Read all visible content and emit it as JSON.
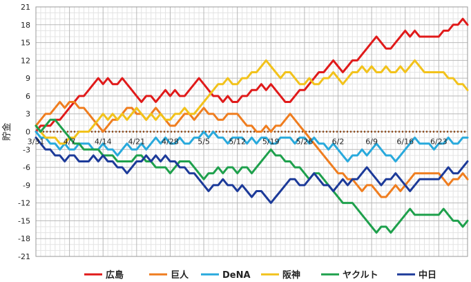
{
  "chart_data": {
    "type": "line",
    "title": "",
    "ylabel": "貯金",
    "xlabel": "",
    "ylim": [
      -21,
      21
    ],
    "yticks": [
      -21,
      -18,
      -15,
      -12,
      -9,
      -6,
      -3,
      0,
      3,
      6,
      9,
      12,
      15,
      18,
      21
    ],
    "x_labels": [
      "3/31",
      "4/7",
      "4/14",
      "4/21",
      "4/28",
      "5/5",
      "5/12",
      "5/19",
      "5/26",
      "6/2",
      "6/9",
      "6/16",
      "6/23"
    ],
    "x_label_index": [
      0,
      7,
      14,
      21,
      28,
      35,
      42,
      49,
      56,
      63,
      70,
      77,
      84
    ],
    "n_points": 91,
    "zero_line": {
      "style": "dotted",
      "color": "#8B4513"
    },
    "series": [
      {
        "name": "広島",
        "color": "#e01a1a",
        "values": [
          0,
          1,
          1,
          1,
          2,
          2,
          3,
          4,
          5,
          6,
          6,
          7,
          8,
          9,
          8,
          9,
          8,
          8,
          9,
          8,
          7,
          6,
          5,
          6,
          6,
          5,
          6,
          7,
          6,
          7,
          6,
          6,
          7,
          8,
          9,
          8,
          7,
          6,
          6,
          5,
          6,
          5,
          5,
          6,
          6,
          7,
          7,
          8,
          7,
          8,
          7,
          6,
          5,
          5,
          6,
          7,
          7,
          8,
          9,
          10,
          10,
          11,
          12,
          11,
          10,
          11,
          12,
          12,
          13,
          14,
          15,
          16,
          15,
          14,
          14,
          15,
          16,
          17,
          16,
          17,
          16,
          16,
          16,
          16,
          16,
          17,
          17,
          18,
          18,
          19,
          18
        ]
      },
      {
        "name": "巨人",
        "color": "#ef7d1f",
        "values": [
          1,
          2,
          3,
          3,
          4,
          5,
          4,
          5,
          5,
          4,
          4,
          3,
          2,
          1,
          0,
          1,
          2,
          2,
          3,
          4,
          4,
          3,
          3,
          2,
          3,
          4,
          3,
          2,
          1,
          1,
          2,
          3,
          3,
          2,
          3,
          4,
          3,
          3,
          2,
          2,
          3,
          3,
          3,
          2,
          1,
          1,
          0,
          0,
          1,
          0,
          1,
          1,
          2,
          3,
          2,
          1,
          0,
          -1,
          -2,
          -3,
          -4,
          -5,
          -6,
          -7,
          -7,
          -8,
          -8,
          -9,
          -10,
          -9,
          -9,
          -10,
          -11,
          -11,
          -10,
          -9,
          -10,
          -9,
          -8,
          -7,
          -7,
          -7,
          -7,
          -7,
          -7,
          -8,
          -9,
          -8,
          -8,
          -7,
          -8
        ]
      },
      {
        "name": "DeNA",
        "color": "#28a9dc",
        "values": [
          0,
          -1,
          -1,
          -2,
          -2,
          -3,
          -2,
          -3,
          -3,
          -2,
          -2,
          -2,
          -3,
          -3,
          -2,
          -3,
          -3,
          -4,
          -3,
          -2,
          -3,
          -3,
          -2,
          -3,
          -2,
          -1,
          -2,
          -1,
          -2,
          -2,
          -1,
          -2,
          -2,
          -1,
          -1,
          0,
          -1,
          0,
          -1,
          -1,
          -2,
          -1,
          -1,
          -1,
          -2,
          -1,
          -2,
          -1,
          -1,
          -2,
          -2,
          -1,
          -1,
          -1,
          -2,
          -1,
          -1,
          -2,
          -1,
          -2,
          -2,
          -3,
          -2,
          -3,
          -4,
          -5,
          -4,
          -4,
          -3,
          -4,
          -3,
          -2,
          -3,
          -4,
          -4,
          -5,
          -4,
          -3,
          -2,
          -1,
          -2,
          -2,
          -2,
          -3,
          -2,
          -2,
          -1,
          -2,
          -2,
          -1,
          -1
        ]
      },
      {
        "name": "阪神",
        "color": "#f2c21b",
        "values": [
          1,
          0,
          -1,
          -1,
          -1,
          -2,
          -2,
          -1,
          -1,
          0,
          0,
          0,
          1,
          2,
          3,
          2,
          3,
          2,
          3,
          2,
          3,
          4,
          3,
          2,
          3,
          2,
          3,
          2,
          2,
          3,
          3,
          4,
          3,
          3,
          4,
          5,
          6,
          7,
          8,
          8,
          9,
          8,
          8,
          9,
          9,
          10,
          10,
          11,
          12,
          11,
          10,
          9,
          10,
          10,
          9,
          8,
          8,
          9,
          8,
          8,
          9,
          9,
          10,
          9,
          8,
          9,
          10,
          10,
          11,
          10,
          11,
          10,
          10,
          11,
          10,
          10,
          11,
          10,
          11,
          12,
          11,
          10,
          10,
          10,
          10,
          10,
          9,
          9,
          8,
          8,
          7
        ]
      },
      {
        "name": "ヤクルト",
        "color": "#1ea04c",
        "values": [
          1,
          0,
          1,
          2,
          2,
          1,
          0,
          -1,
          -2,
          -2,
          -3,
          -3,
          -3,
          -3,
          -4,
          -4,
          -4,
          -5,
          -5,
          -5,
          -5,
          -4,
          -4,
          -5,
          -5,
          -6,
          -6,
          -6,
          -7,
          -6,
          -5,
          -5,
          -5,
          -6,
          -7,
          -8,
          -7,
          -7,
          -6,
          -7,
          -6,
          -6,
          -7,
          -6,
          -6,
          -7,
          -6,
          -5,
          -4,
          -3,
          -4,
          -4,
          -5,
          -5,
          -6,
          -6,
          -7,
          -8,
          -7,
          -7,
          -8,
          -9,
          -10,
          -11,
          -12,
          -12,
          -12,
          -13,
          -14,
          -15,
          -16,
          -17,
          -16,
          -16,
          -17,
          -16,
          -15,
          -14,
          -13,
          -14,
          -14,
          -14,
          -14,
          -14,
          -14,
          -13,
          -14,
          -15,
          -15,
          -16,
          -15
        ]
      },
      {
        "name": "中日",
        "color": "#1c3a99",
        "values": [
          -1,
          -2,
          -3,
          -3,
          -4,
          -4,
          -5,
          -4,
          -4,
          -5,
          -5,
          -5,
          -4,
          -5,
          -4,
          -5,
          -5,
          -6,
          -6,
          -7,
          -6,
          -5,
          -5,
          -4,
          -5,
          -4,
          -5,
          -4,
          -5,
          -5,
          -6,
          -6,
          -7,
          -7,
          -8,
          -9,
          -10,
          -9,
          -9,
          -8,
          -9,
          -9,
          -10,
          -9,
          -10,
          -11,
          -10,
          -10,
          -11,
          -12,
          -11,
          -10,
          -9,
          -8,
          -8,
          -9,
          -9,
          -8,
          -7,
          -8,
          -9,
          -9,
          -10,
          -9,
          -8,
          -9,
          -8,
          -8,
          -7,
          -6,
          -7,
          -8,
          -9,
          -8,
          -8,
          -7,
          -8,
          -9,
          -10,
          -9,
          -8,
          -8,
          -8,
          -8,
          -8,
          -7,
          -6,
          -7,
          -7,
          -6,
          -5
        ]
      }
    ]
  }
}
